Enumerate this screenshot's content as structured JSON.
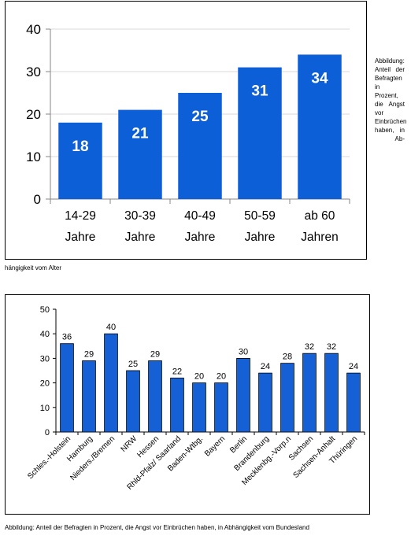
{
  "captions": {
    "chart1_side": "Abbildung: Anteil der Befragten in Prozent, die Angst vor Einbrüchen haben, in Ab-",
    "chart1_bottom": "hängigkeit vom Alter",
    "chart2_bottom": "Abbildung: Anteil der Befragten in Prozent, die Angst vor Einbrüchen haben, in Abhängigkeit vom Bundesland"
  },
  "colors": {
    "bar": "#0d5fd8",
    "bar2": "#1560d4",
    "axis": "#868686",
    "grid": "#d9d9d9"
  },
  "chart_data": [
    {
      "type": "bar",
      "categories": [
        [
          "14-29",
          "Jahre"
        ],
        [
          "30-39",
          "Jahre"
        ],
        [
          "40-49",
          "Jahre"
        ],
        [
          "50-59",
          "Jahre"
        ],
        [
          "ab 60",
          "Jahren"
        ]
      ],
      "values": [
        18,
        21,
        25,
        31,
        34
      ],
      "ylim": [
        0,
        40
      ],
      "yticks": [
        0,
        10,
        20,
        30,
        40
      ],
      "grid": true,
      "data_labels": "inside"
    },
    {
      "type": "bar",
      "categories": [
        "Schles.-Holstein",
        "Hamburg",
        "Nieders./Bremen",
        "NRW",
        "Hessen",
        "Rhld-Pfalz/ Saarland",
        "Baden-Wtbg.",
        "Bayern",
        "Berlin",
        "Brandenburg",
        "Mecklenbg.-Vorp.n",
        "Sachsen",
        "Sachsen-Anhalt",
        "Thüringen"
      ],
      "values": [
        36,
        29,
        40,
        25,
        29,
        22,
        20,
        20,
        30,
        24,
        28,
        32,
        32,
        24
      ],
      "ylim": [
        0,
        50
      ],
      "yticks": [
        0,
        10,
        20,
        30,
        40,
        50
      ],
      "grid": false,
      "data_labels": "above"
    }
  ]
}
